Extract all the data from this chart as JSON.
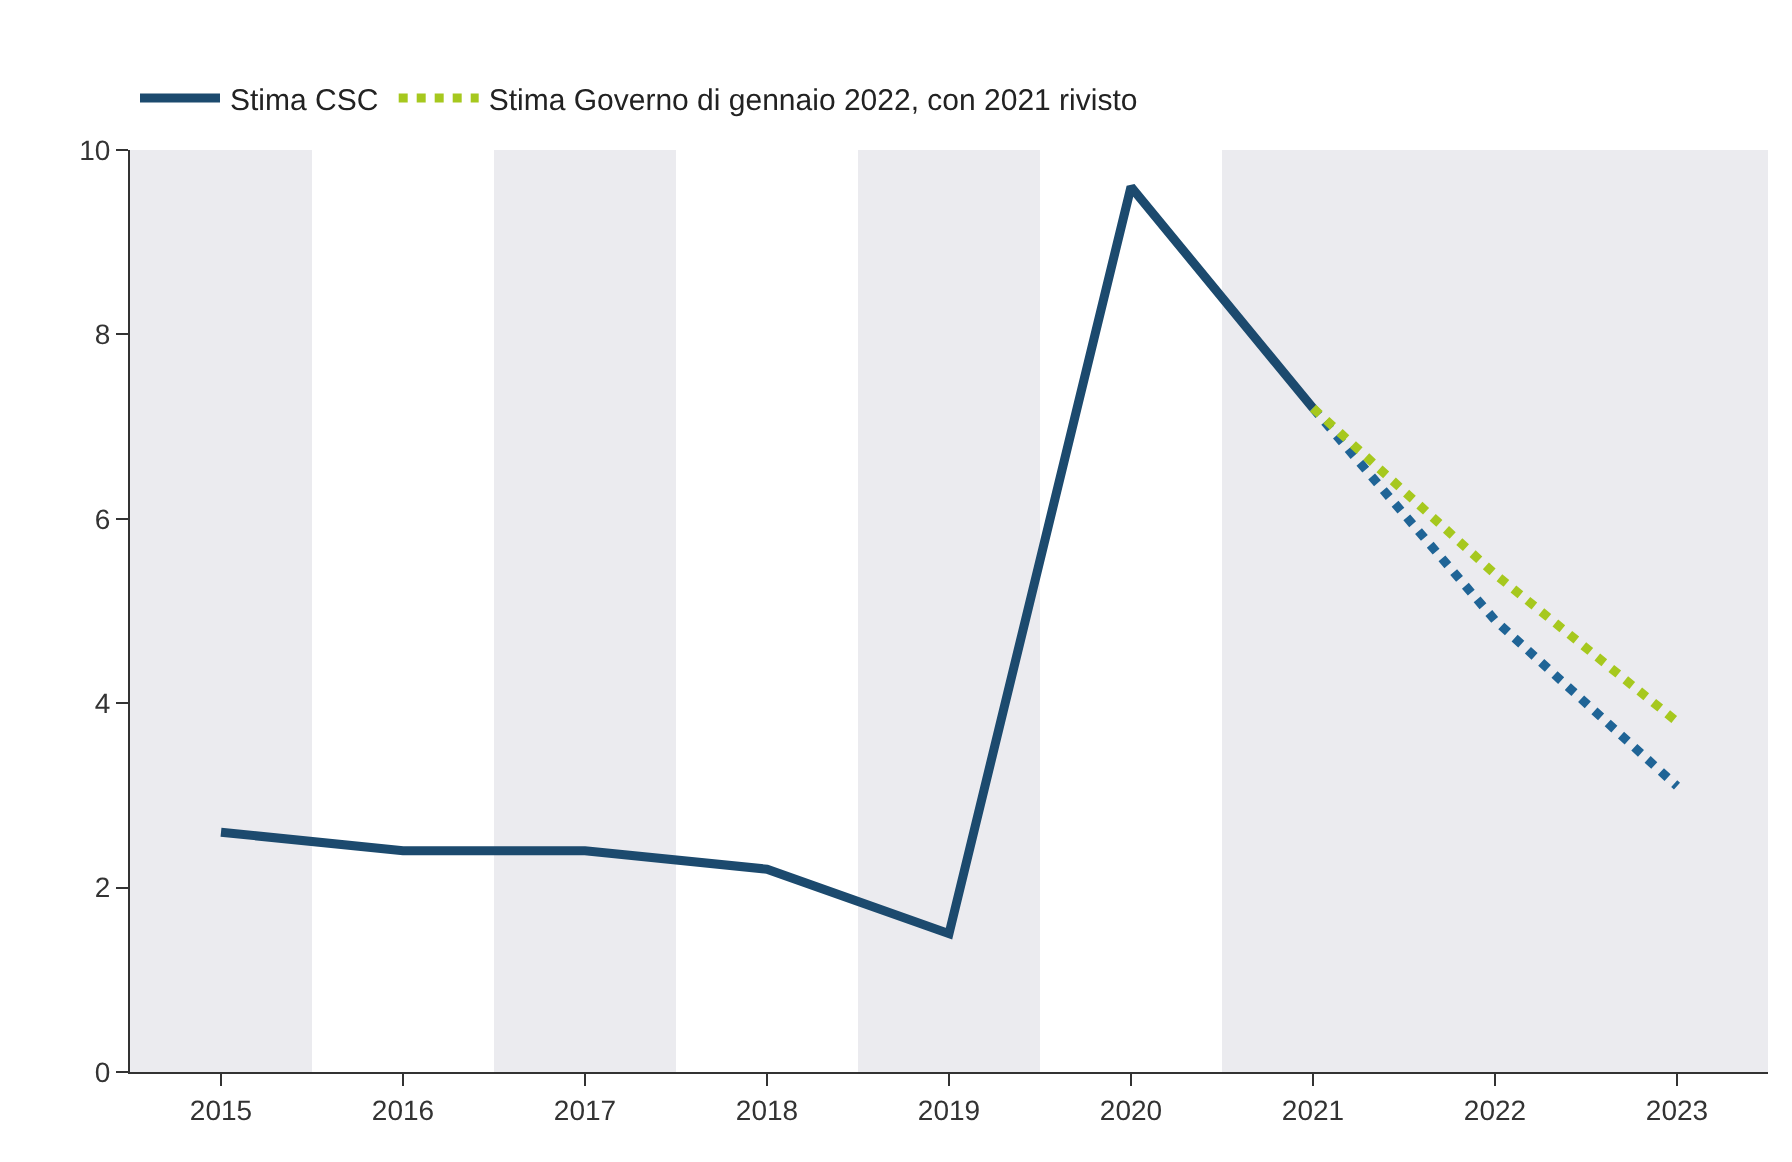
{
  "chart_data": {
    "type": "line",
    "categories": [
      "2015",
      "2016",
      "2017",
      "2018",
      "2019",
      "2020",
      "2021",
      "2022",
      "2023"
    ],
    "series": [
      {
        "name": "Stima CSC",
        "color": "#1c4a6e",
        "line_style": "solid",
        "values": [
          2.6,
          2.4,
          2.4,
          2.2,
          1.5,
          9.6,
          7.2,
          null,
          null
        ]
      },
      {
        "color": "#1f6496",
        "line_style": "dotted",
        "values": [
          null,
          null,
          null,
          null,
          null,
          null,
          7.2,
          4.9,
          3.1
        ]
      },
      {
        "name": "Stima Governo di gennaio 2022, con 2021 rivisto",
        "color": "#a6c81e",
        "line_style": "dotted",
        "values": [
          null,
          null,
          null,
          null,
          null,
          null,
          7.2,
          5.4,
          3.8
        ]
      }
    ],
    "ylim": [
      0,
      10
    ],
    "yticks": [
      0,
      2,
      4,
      6,
      8,
      10
    ],
    "grid": false,
    "legend": "top left",
    "marker": "none",
    "bands": [
      {
        "axis": "x",
        "from": "2015",
        "to": "2015",
        "color": "#ebebef"
      },
      {
        "axis": "x",
        "from": "2017",
        "to": "2017",
        "color": "#ebebef"
      },
      {
        "axis": "x",
        "from": "2019",
        "to": "2019",
        "color": "#ebebef"
      },
      {
        "axis": "x",
        "from": "2021",
        "to": "2022",
        "color": "#ebebef"
      },
      {
        "axis": "x",
        "from": "2023",
        "to": "2023",
        "color": "#ebebef"
      }
    ]
  }
}
